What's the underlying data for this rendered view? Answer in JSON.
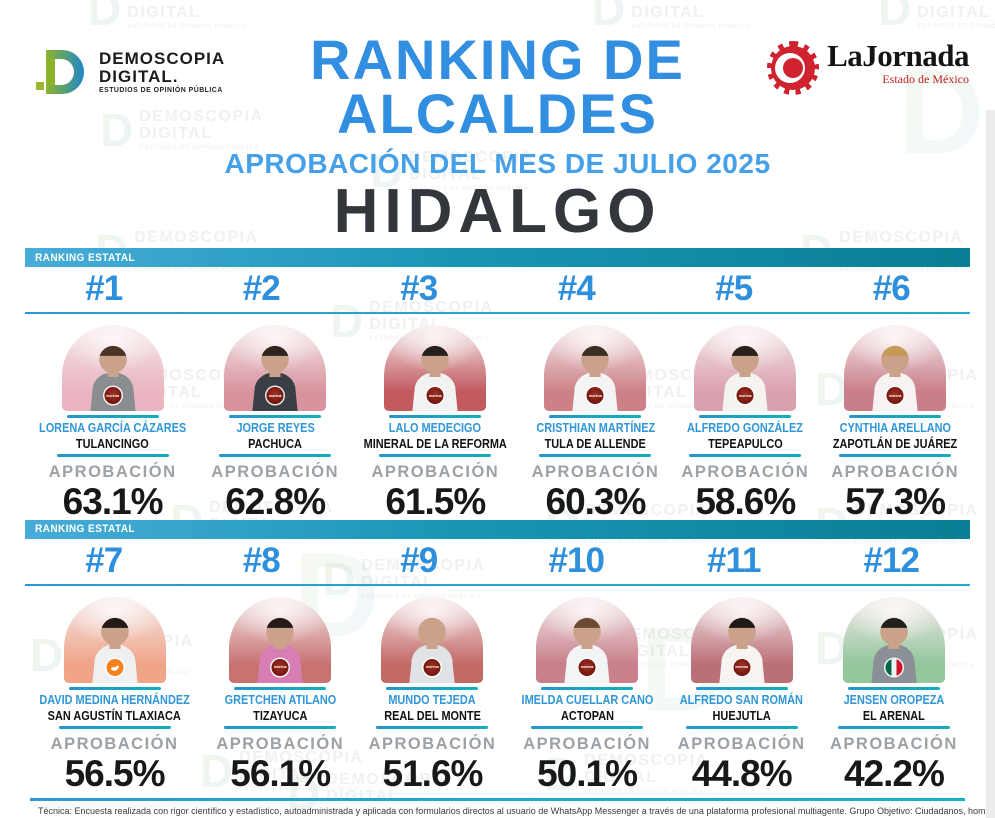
{
  "header": {
    "brand": {
      "name": "DEMOSCOPIA",
      "name2": "DIGITAL.",
      "tagline": "ESTUDIOS DE OPINIÓN PÚBLICA"
    },
    "partner": {
      "name": "LaJornada",
      "region": "Estado de México"
    },
    "title_line1": "RANKING DE",
    "title_line2": "ALCALDES",
    "subtitle": "APROBACIÓN DEL MES DE JULIO 2025",
    "state": "HIDALGO"
  },
  "watermark": {
    "line1": "DEMOSCOPIA",
    "line2": "DIGITAL",
    "tagline": "ESTUDIOS DE OPINIÓN PÚBLICA"
  },
  "labels": {
    "approval": "APROBACIÓN"
  },
  "colors": {
    "accent_blue": "#2e90dc",
    "teal": "#13a9bf",
    "dark_text": "#33373c",
    "approval_gray": "#9ba1a6",
    "morena_red": "#7c1b13",
    "mc_orange": "#f5821f",
    "pri_green": "#006847",
    "pri_red": "#ce1126"
  },
  "sections": [
    {
      "bar_label": "RANKING ESTATAL",
      "cards": [
        {
          "rank": "#1",
          "name": "LORENA GARCÍA CÁZARES",
          "municipality": "TULANCINGO",
          "approval": "63.1%",
          "party": "morena",
          "photo_bg": "#eab4c0",
          "shirt": "#8a8d92",
          "hair": "#4a3426"
        },
        {
          "rank": "#2",
          "name": "JORGE REYES",
          "municipality": "PACHUCA",
          "approval": "62.8%",
          "party": "morena",
          "photo_bg": "#d9939e",
          "shirt": "#3a3f45",
          "hair": "#2f241d"
        },
        {
          "rank": "#3",
          "name": "LALO MEDECIGO",
          "municipality": "MINERAL DE LA REFORMA",
          "approval": "61.5%",
          "party": "morena",
          "photo_bg": "#c25a60",
          "shirt": "#f2f2f2",
          "hair": "#26201c"
        },
        {
          "rank": "#4",
          "name": "CRISTHIAN MARTÍNEZ",
          "municipality": "TULA DE ALLENDE",
          "approval": "60.3%",
          "party": "morena",
          "photo_bg": "#cd8187",
          "shirt": "#f4f4f4",
          "hair": "#3c2e25"
        },
        {
          "rank": "#5",
          "name": "ALFREDO GONZÁLEZ",
          "municipality": "TEPEAPULCO",
          "approval": "58.6%",
          "party": "morena",
          "photo_bg": "#dba0ad",
          "shirt": "#f5f3f0",
          "hair": "#2b211b"
        },
        {
          "rank": "#6",
          "name": "CYNTHIA ARELLANO",
          "municipality": "ZAPOTLÁN DE JUÁREZ",
          "approval": "57.3%",
          "party": "morena",
          "photo_bg": "#ca7e89",
          "shirt": "#f7f3f2",
          "hair": "#c59a55"
        }
      ]
    },
    {
      "bar_label": "RANKING ESTATAL",
      "cards": [
        {
          "rank": "#7",
          "name": "DAVID MEDINA HERNÁNDEZ",
          "municipality": "SAN AGUSTÍN TLAXIACA",
          "approval": "56.5%",
          "party": "mc",
          "photo_bg": "#f0a488",
          "shirt": "#eef0f2",
          "hair": "#221a15"
        },
        {
          "rank": "#8",
          "name": "GRETCHEN ATILANO",
          "municipality": "TIZAYUCA",
          "approval": "56.1%",
          "party": "morena",
          "photo_bg": "#c97272",
          "shirt": "#d77fb4",
          "hair": "#241a16"
        },
        {
          "rank": "#9",
          "name": "MUNDO TEJEDA",
          "municipality": "REAL DEL MONTE",
          "approval": "51.6%",
          "party": "morena",
          "photo_bg": "#c46a66",
          "shirt": "#dfe3e6",
          "hair": ""
        },
        {
          "rank": "#10",
          "name": "IMELDA CUELLAR CANO",
          "municipality": "ACTOPAN",
          "approval": "50.1%",
          "party": "morena",
          "photo_bg": "#c8808b",
          "shirt": "#f2f4f6",
          "hair": "#6b4a33"
        },
        {
          "rank": "#11",
          "name": "ALFREDO SAN ROMÁN",
          "municipality": "HUEJUTLA",
          "approval": "44.8%",
          "party": "morena",
          "photo_bg": "#bb7077",
          "shirt": "#f6f3f1",
          "hair": "#1f1a16"
        },
        {
          "rank": "#12",
          "name": "JENSEN OROPEZA",
          "municipality": "EL ARENAL",
          "approval": "42.2%",
          "party": "pri",
          "photo_bg": "#93c79c",
          "shirt": "#8a9096",
          "hair": "#23201c"
        }
      ]
    }
  ],
  "footer": {
    "note": "Técnica: Encuesta realizada con rigor científico y estadístico, autoadministrada y aplicada con formularios directos al usuario de WhatsApp Messenger a través de una plataforma profesional multiagente. Grupo Objetivo: Ciudadanos, hombres y mujeres, mayores de"
  }
}
